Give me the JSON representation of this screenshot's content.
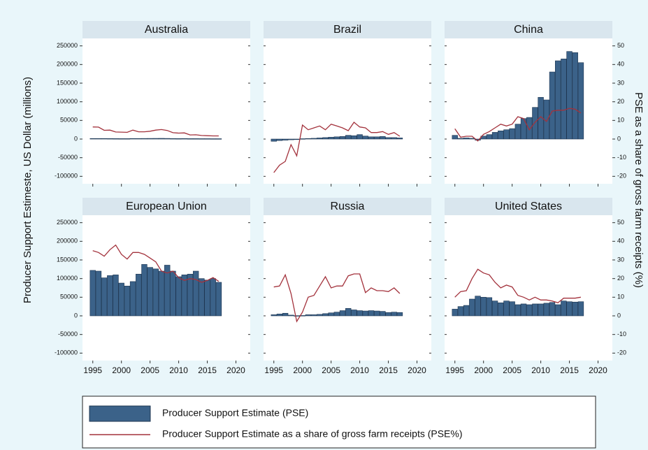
{
  "chart_data": [
    {
      "type": "combo",
      "title": "Australia",
      "ylabel": "Producer Support Estimeste, US Dollar (millions)",
      "y2label": "PSE as a share of gross farm receipts (%)",
      "x": [
        1995,
        1996,
        1997,
        1998,
        1999,
        2000,
        2001,
        2002,
        2003,
        2004,
        2005,
        2006,
        2007,
        2008,
        2009,
        2010,
        2011,
        2012,
        2013,
        2014,
        2015,
        2016,
        2017
      ],
      "xlim": [
        1993.2,
        2022.5
      ],
      "xticks": [
        1995,
        2000,
        2005,
        2010,
        2015,
        2020
      ],
      "ylim": [
        -120000,
        270000
      ],
      "yticks": [
        -100000,
        -50000,
        0,
        50000,
        100000,
        150000,
        200000,
        250000
      ],
      "y2lim": [
        -24,
        54
      ],
      "y2ticks": [
        -20,
        -10,
        0,
        10,
        20,
        30,
        40,
        50
      ],
      "series": [
        {
          "name": "Producer Support Estimate (PSE)",
          "color": "#3b6289",
          "values": [
            1500,
            1500,
            1500,
            1400,
            1300,
            1200,
            1200,
            1500,
            1500,
            1600,
            1700,
            1800,
            1900,
            1700,
            1400,
            1300,
            1400,
            1200,
            1200,
            1100,
            1100,
            1000,
            1000
          ]
        },
        {
          "name": "Producer Support Estimate as a share of gross farm receipts (PSE%)",
          "color": "#a3323c",
          "axis": "y2",
          "values": [
            6.5,
            6.4,
            4.7,
            4.8,
            3.8,
            3.7,
            3.6,
            4.8,
            3.9,
            3.9,
            4.2,
            4.8,
            5.1,
            4.6,
            3.4,
            3.2,
            3.3,
            2.2,
            2.3,
            1.9,
            1.8,
            1.7,
            1.7
          ]
        }
      ]
    },
    {
      "type": "combo",
      "title": "Brazil",
      "x": [
        1995,
        1996,
        1997,
        1998,
        1999,
        2000,
        2001,
        2002,
        2003,
        2004,
        2005,
        2006,
        2007,
        2008,
        2009,
        2010,
        2011,
        2012,
        2013,
        2014,
        2015,
        2016,
        2017
      ],
      "xlim": [
        1993.2,
        2022.5
      ],
      "xticks": [
        1995,
        2000,
        2005,
        2010,
        2015,
        2020
      ],
      "ylim": [
        -120000,
        270000
      ],
      "yticks": [
        -100000,
        -50000,
        0,
        50000,
        100000,
        150000,
        200000,
        250000
      ],
      "y2lim": [
        -24,
        54
      ],
      "y2ticks": [
        -20,
        -10,
        0,
        10,
        20,
        30,
        40,
        50
      ],
      "series": [
        {
          "name": "Producer Support Estimate (PSE)",
          "color": "#3b6289",
          "values": [
            -6000,
            -4000,
            -3000,
            -2000,
            0,
            1000,
            1500,
            2000,
            3000,
            4000,
            5000,
            6000,
            7000,
            10000,
            9000,
            12000,
            8000,
            6000,
            6000,
            7000,
            4000,
            4000,
            3000
          ]
        },
        {
          "name": "Producer Support Estimate as a share of gross farm receipts (PSE%)",
          "color": "#a3323c",
          "axis": "y2",
          "values": [
            -18,
            -14,
            -12,
            -3,
            -9,
            7.5,
            5,
            6,
            7,
            5,
            8,
            7,
            6,
            4.5,
            9,
            6.5,
            6,
            3.5,
            3.5,
            4,
            2.5,
            3.5,
            1.5
          ]
        }
      ]
    },
    {
      "type": "combo",
      "title": "China",
      "x": [
        1995,
        1996,
        1997,
        1998,
        1999,
        2000,
        2001,
        2002,
        2003,
        2004,
        2005,
        2006,
        2007,
        2008,
        2009,
        2010,
        2011,
        2012,
        2013,
        2014,
        2015,
        2016,
        2017
      ],
      "xlim": [
        1993.2,
        2022.5
      ],
      "xticks": [
        1995,
        2000,
        2005,
        2010,
        2015,
        2020
      ],
      "ylim": [
        -120000,
        270000
      ],
      "yticks": [
        -100000,
        -50000,
        0,
        50000,
        100000,
        150000,
        200000,
        250000
      ],
      "y2lim": [
        -24,
        54
      ],
      "y2ticks": [
        -20,
        -10,
        0,
        10,
        20,
        30,
        40,
        50
      ],
      "series": [
        {
          "name": "Producer Support Estimate (PSE)",
          "color": "#3b6289",
          "values": [
            10000,
            2000,
            3000,
            2000,
            -3000,
            8000,
            12000,
            18000,
            22000,
            25000,
            28000,
            40000,
            55000,
            58000,
            85000,
            112000,
            105000,
            180000,
            210000,
            215000,
            235000,
            232000,
            205000
          ]
        },
        {
          "name": "Producer Support Estimate as a share of gross farm receipts (PSE%)",
          "color": "#a3323c",
          "axis": "y2",
          "values": [
            5.5,
            1,
            1.5,
            1.5,
            -1,
            2.5,
            4,
            6,
            8,
            7,
            8,
            12,
            11,
            5,
            9,
            12,
            9.5,
            15,
            15.5,
            15.5,
            16.5,
            16,
            14
          ]
        }
      ]
    },
    {
      "type": "combo",
      "title": "European Union",
      "x": [
        1995,
        1996,
        1997,
        1998,
        1999,
        2000,
        2001,
        2002,
        2003,
        2004,
        2005,
        2006,
        2007,
        2008,
        2009,
        2010,
        2011,
        2012,
        2013,
        2014,
        2015,
        2016,
        2017
      ],
      "xlim": [
        1993.2,
        2022.5
      ],
      "xticks": [
        1995,
        2000,
        2005,
        2010,
        2015,
        2020
      ],
      "ylim": [
        -120000,
        270000
      ],
      "yticks": [
        -100000,
        -50000,
        0,
        50000,
        100000,
        150000,
        200000,
        250000
      ],
      "y2lim": [
        -24,
        54
      ],
      "y2ticks": [
        -20,
        -10,
        0,
        10,
        20,
        30,
        40,
        50
      ],
      "series": [
        {
          "name": "Producer Support Estimate (PSE)",
          "color": "#3b6289",
          "values": [
            122000,
            120000,
            102000,
            108000,
            110000,
            88000,
            80000,
            92000,
            112000,
            138000,
            130000,
            126000,
            120000,
            136000,
            120000,
            105000,
            110000,
            112000,
            120000,
            100000,
            96000,
            100000,
            90000
          ]
        },
        {
          "name": "Producer Support Estimate as a share of gross farm receipts (PSE%)",
          "color": "#a3323c",
          "axis": "y2",
          "values": [
            35,
            34,
            32,
            35.5,
            38,
            33,
            30.5,
            34,
            34,
            33,
            31,
            29,
            24,
            23,
            24,
            20.5,
            19,
            20,
            19.5,
            18,
            19,
            20.5,
            18.5
          ]
        }
      ]
    },
    {
      "type": "combo",
      "title": "Russia",
      "x": [
        1995,
        1996,
        1997,
        1998,
        1999,
        2000,
        2001,
        2002,
        2003,
        2004,
        2005,
        2006,
        2007,
        2008,
        2009,
        2010,
        2011,
        2012,
        2013,
        2014,
        2015,
        2016,
        2017
      ],
      "xlim": [
        1993.2,
        2022.5
      ],
      "xticks": [
        1995,
        2000,
        2005,
        2010,
        2015,
        2020
      ],
      "ylim": [
        -120000,
        270000
      ],
      "yticks": [
        -100000,
        -50000,
        0,
        50000,
        100000,
        150000,
        200000,
        250000
      ],
      "y2lim": [
        -24,
        54
      ],
      "y2ticks": [
        -20,
        -10,
        0,
        10,
        20,
        30,
        40,
        50
      ],
      "series": [
        {
          "name": "Producer Support Estimate (PSE)",
          "color": "#3b6289",
          "values": [
            3000,
            5000,
            7000,
            2000,
            500,
            1000,
            3000,
            3000,
            4000,
            6000,
            8000,
            10000,
            14000,
            20000,
            16000,
            14000,
            13000,
            14000,
            13000,
            12000,
            9000,
            10000,
            9000
          ]
        },
        {
          "name": "Producer Support Estimate as a share of gross farm receipts (PSE%)",
          "color": "#a3323c",
          "axis": "y2",
          "values": [
            15.5,
            16,
            22,
            12,
            -3,
            2,
            10,
            11,
            16,
            21,
            15,
            16,
            16,
            21.5,
            22.5,
            22.5,
            12.5,
            15,
            13.5,
            13.5,
            13,
            15,
            12
          ]
        }
      ]
    },
    {
      "type": "combo",
      "title": "United States",
      "x": [
        1995,
        1996,
        1997,
        1998,
        1999,
        2000,
        2001,
        2002,
        2003,
        2004,
        2005,
        2006,
        2007,
        2008,
        2009,
        2010,
        2011,
        2012,
        2013,
        2014,
        2015,
        2016,
        2017
      ],
      "xlim": [
        1993.2,
        2022.5
      ],
      "xticks": [
        1995,
        2000,
        2005,
        2010,
        2015,
        2020
      ],
      "ylim": [
        -120000,
        270000
      ],
      "yticks": [
        -100000,
        -50000,
        0,
        50000,
        100000,
        150000,
        200000,
        250000
      ],
      "y2lim": [
        -24,
        54
      ],
      "y2ticks": [
        -20,
        -10,
        0,
        10,
        20,
        30,
        40,
        50
      ],
      "series": [
        {
          "name": "Producer Support Estimate (PSE)",
          "color": "#3b6289",
          "values": [
            18000,
            25000,
            28000,
            45000,
            53000,
            50000,
            49000,
            40000,
            35000,
            40000,
            38000,
            30000,
            32000,
            30000,
            32000,
            32000,
            34000,
            36000,
            30000,
            40000,
            38000,
            37000,
            38000
          ]
        },
        {
          "name": "Producer Support Estimate as a share of gross farm receipts (PSE%)",
          "color": "#a3323c",
          "axis": "y2",
          "values": [
            10,
            13,
            13.5,
            20,
            25,
            23,
            22,
            18,
            15,
            16.5,
            15.5,
            11,
            10,
            8.5,
            10,
            8.5,
            8.5,
            8,
            7,
            9.5,
            9.5,
            9.5,
            10
          ]
        }
      ]
    }
  ]
}
